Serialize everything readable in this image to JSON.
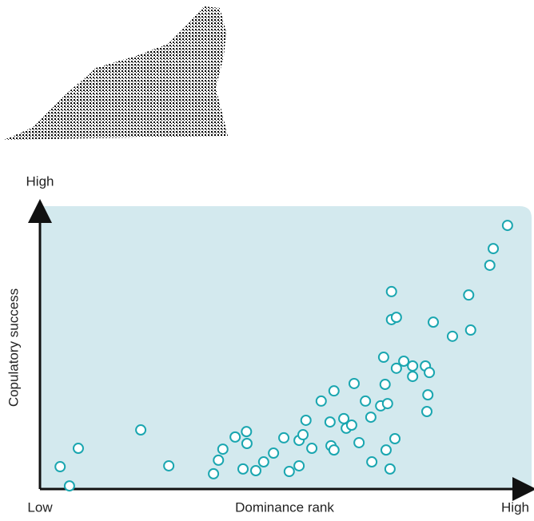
{
  "chart_data": {
    "type": "scatter",
    "x_label": "Dominance rank",
    "y_label": "Copulatory success",
    "xlim": [
      0,
      100
    ],
    "ylim": [
      0,
      100
    ],
    "xticks": [
      {
        "value": 0,
        "label": "Low"
      },
      {
        "value": 100,
        "label": "High"
      }
    ],
    "yticks": [
      {
        "value": 100,
        "label": "High"
      }
    ],
    "background": "#d3e9ee",
    "series": [
      {
        "color": "#1aa6b0",
        "x": [
          4.1,
          6.0,
          7.8,
          20.5,
          26.2,
          35.3,
          36.3,
          37.2,
          39.7,
          42.0,
          42.1,
          41.3,
          43.9,
          45.5,
          47.5,
          49.6,
          50.7,
          52.7,
          52.7,
          53.5,
          54.1,
          55.3,
          57.2,
          59.0,
          59.2,
          59.8,
          59.8,
          61.8,
          62.3,
          63.4,
          63.9,
          64.9,
          66.2,
          67.5,
          67.3,
          69.3,
          70.2,
          70.7,
          69.9,
          70.4,
          71.2,
          72.2,
          71.5,
          72.5,
          71.5,
          72.5,
          74.0,
          75.8,
          75.8,
          78.4,
          79.2,
          78.9,
          78.7,
          80.0,
          83.9,
          87.2,
          87.6,
          91.5,
          92.2,
          95.1
        ],
        "values": [
          7.9,
          1.1,
          14.4,
          20.9,
          8.2,
          5.4,
          10.2,
          14.1,
          18.4,
          20.3,
          16.1,
          7.1,
          6.5,
          9.6,
          12.7,
          18.1,
          6.2,
          8.2,
          17.2,
          19.2,
          24.3,
          14.4,
          31.1,
          23.7,
          15.3,
          34.7,
          13.8,
          24.9,
          21.5,
          22.6,
          37.3,
          16.4,
          31.1,
          9.6,
          25.4,
          29.4,
          37.0,
          30.2,
          46.6,
          13.8,
          7.1,
          17.8,
          59.9,
          60.7,
          69.8,
          42.7,
          45.2,
          43.5,
          39.8,
          43.5,
          41.2,
          33.3,
          27.4,
          59.0,
          54.0,
          68.6,
          56.2,
          79.1,
          85.0,
          93.2
        ]
      }
    ]
  }
}
